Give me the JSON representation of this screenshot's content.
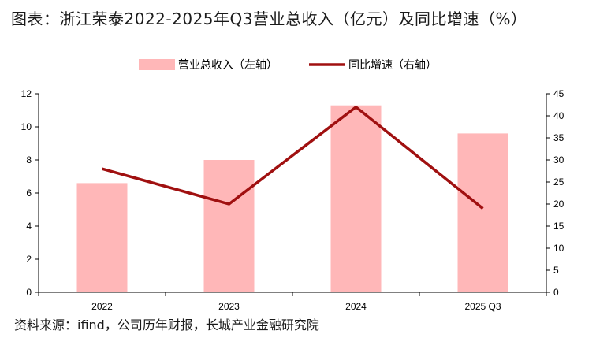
{
  "title": "图表：浙江荣泰2022-2025年Q3营业总收入（亿元）及同比增速（%）",
  "source": "资料来源：ifind，公司历年财报，长城产业金融研究院",
  "colors": {
    "bar": "#FFB7B8",
    "line": "#A01010",
    "axis": "#000000"
  },
  "chart_data": {
    "type": "bar+line",
    "categories": [
      "2022",
      "2023",
      "2024",
      "2025 Q3"
    ],
    "series": [
      {
        "name": "营业总收入（左轴）",
        "type": "bar",
        "axis": "left",
        "values": [
          6.6,
          8.0,
          11.3,
          9.6
        ]
      },
      {
        "name": "同比增速（右轴）",
        "type": "line",
        "axis": "right",
        "values": [
          28.0,
          20.0,
          42.0,
          19.0
        ]
      }
    ],
    "y_left": {
      "min": 0,
      "max": 12,
      "step": 2,
      "ticks": [
        "0",
        "2",
        "4",
        "6",
        "8",
        "10",
        "12"
      ]
    },
    "y_right": {
      "min": 0,
      "max": 45,
      "step": 5,
      "ticks": [
        "0",
        "5",
        "10",
        "15",
        "20",
        "25",
        "30",
        "35",
        "40",
        "45"
      ]
    },
    "legend_position": "top",
    "grid": false
  }
}
